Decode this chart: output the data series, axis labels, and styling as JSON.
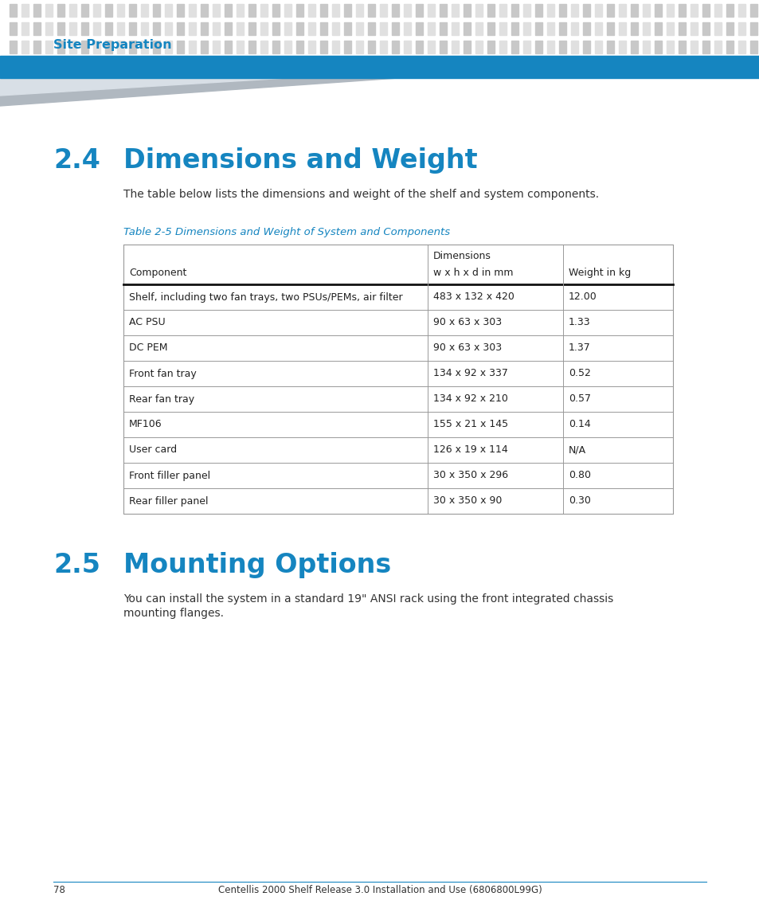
{
  "bg_color": "#ffffff",
  "dot_color_light": "#e0e0e0",
  "dot_color_dark": "#c8c8c8",
  "blue_color": "#1585c0",
  "dark_text": "#1a1a1a",
  "gray_text": "#444444",
  "header_label": "Site Preparation",
  "section_2_4_number": "2.4",
  "section_2_4_title": "Dimensions and Weight",
  "section_2_4_body": "The table below lists the dimensions and weight of the shelf and system components.",
  "table_caption": "Table 2-5 Dimensions and Weight of System and Components",
  "table_rows": [
    [
      "Shelf, including two fan trays, two PSUs/PEMs, air filter",
      "483 x 132 x 420",
      "12.00"
    ],
    [
      "AC PSU",
      "90 x 63 x 303",
      "1.33"
    ],
    [
      "DC PEM",
      "90 x 63 x 303",
      "1.37"
    ],
    [
      "Front fan tray",
      "134 x 92 x 337",
      "0.52"
    ],
    [
      "Rear fan tray",
      "134 x 92 x 210",
      "0.57"
    ],
    [
      "MF106",
      "155 x 21 x 145",
      "0.14"
    ],
    [
      "User card",
      "126 x 19 x 114",
      "N/A"
    ],
    [
      "Front filler panel",
      "30 x 350 x 296",
      "0.80"
    ],
    [
      "Rear filler panel",
      "30 x 350 x 90",
      "0.30"
    ]
  ],
  "section_2_5_number": "2.5",
  "section_2_5_title": "Mounting Options",
  "section_2_5_body_line1": "You can install the system in a standard 19\" ANSI rack using the front integrated chassis",
  "section_2_5_body_line2": "mounting flanges.",
  "footer_page": "78",
  "footer_text": "Centellis 2000 Shelf Release 3.0 Installation and Use (6806800L99G)"
}
